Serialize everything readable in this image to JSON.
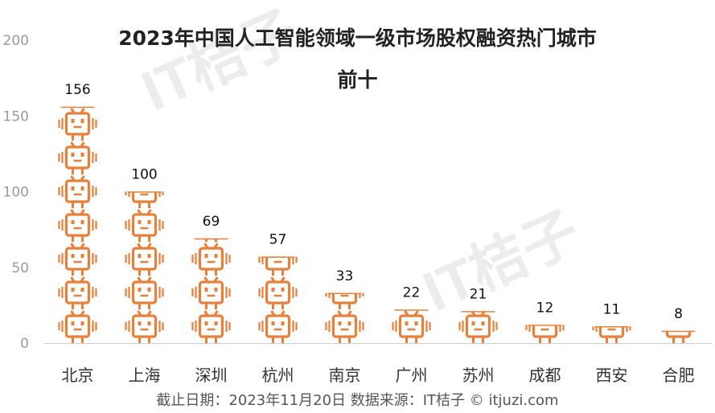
{
  "chart_data": {
    "type": "bar",
    "title_line1": "2023年中国人工智能领域一级市场股权融资热门城市",
    "title_line2": "前十",
    "categories": [
      "北京",
      "上海",
      "深圳",
      "杭州",
      "南京",
      "广州",
      "苏州",
      "成都",
      "西安",
      "合肥"
    ],
    "values": [
      156,
      100,
      69,
      57,
      33,
      22,
      21,
      12,
      11,
      8
    ],
    "ylim": [
      0,
      200
    ],
    "yticks": [
      "0",
      "50",
      "100",
      "150",
      "200"
    ],
    "grid": false,
    "bar_color": "#e8803a"
  },
  "source": "截止日期：2023年11月20日    数据来源：IT桔子 © itjuzi.com",
  "watermark": "IT桔子"
}
